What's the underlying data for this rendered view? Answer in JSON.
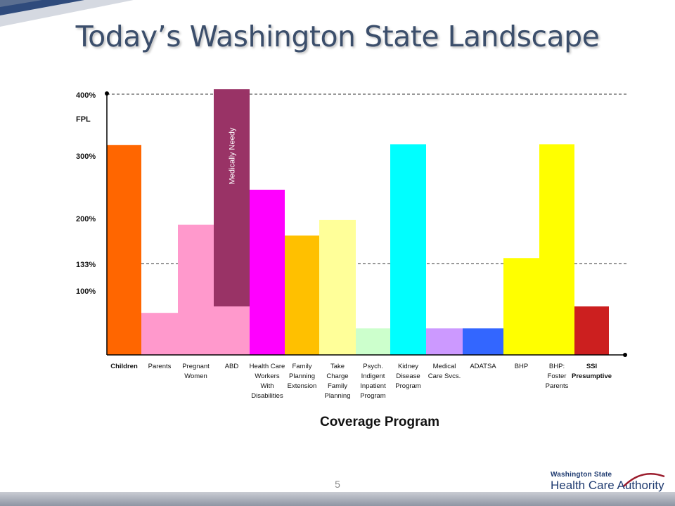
{
  "slide": {
    "title": "Today’s Washington State Landscape",
    "page_number": "5",
    "logo_top": "Washington State",
    "logo_bottom": "Health Care Authority"
  },
  "chart_data": {
    "type": "bar",
    "title": "",
    "xlabel": "Coverage Program",
    "ylabel": "FPL",
    "y_ticks": [
      {
        "value": 100,
        "label": "100%"
      },
      {
        "value": 133,
        "label": "133%"
      },
      {
        "value": 200,
        "label": "200%"
      },
      {
        "value": 300,
        "label": "300%"
      },
      {
        "value": 400,
        "label": "400%"
      }
    ],
    "reference_lines": [
      133,
      400
    ],
    "categories": [
      {
        "label": "Children",
        "bold": true
      },
      {
        "label": "Parents"
      },
      {
        "label": "Pregnant Women"
      },
      {
        "label": "ABD"
      },
      {
        "label": "Health Care Workers With Disabilities"
      },
      {
        "label": "Family Planning Extension"
      },
      {
        "label": "Take Charge Family Planning"
      },
      {
        "label": "Psych. Indigent Inpatient Program"
      },
      {
        "label": "Kidney Disease Program"
      },
      {
        "label": "Medical Care Svcs."
      },
      {
        "label": "ADATSA"
      },
      {
        "label": "BHP"
      },
      {
        "label": "BHP: Foster Parents"
      },
      {
        "label": "SSI Presumptive",
        "bold": true
      }
    ],
    "bars": [
      {
        "value": 317,
        "color": "#ff6600"
      },
      {
        "value": 65,
        "color": "#ff99cc"
      },
      {
        "value": 190,
        "color": "#ff99cc"
      },
      {
        "value": 75,
        "color": "#ff99cc"
      },
      {
        "value": 245,
        "color": "#ff00ff"
      },
      {
        "value": 174,
        "color": "#ffc000"
      },
      {
        "value": 197,
        "color": "#ffff99"
      },
      {
        "value": 41,
        "color": "#ccffcc"
      },
      {
        "value": 318,
        "color": "#00ffff"
      },
      {
        "value": 41,
        "color": "#cc99ff"
      },
      {
        "value": 41,
        "color": "#3366ff"
      },
      {
        "value": 141,
        "color": "#ffff00"
      },
      {
        "value": 318,
        "color": "#ffff00"
      },
      {
        "value": 75,
        "color": "#cc1f1f"
      }
    ],
    "overlay": {
      "label": "Medically Needy",
      "category_index": 3,
      "from": 75,
      "to": 407,
      "color": "#993366"
    }
  }
}
